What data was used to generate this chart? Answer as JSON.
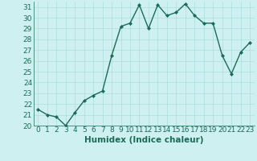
{
  "x": [
    0,
    1,
    2,
    3,
    4,
    5,
    6,
    7,
    8,
    9,
    10,
    11,
    12,
    13,
    14,
    15,
    16,
    17,
    18,
    19,
    20,
    21,
    22,
    23
  ],
  "y": [
    21.5,
    21.0,
    20.8,
    20.0,
    21.2,
    22.3,
    22.8,
    23.2,
    26.5,
    29.2,
    29.5,
    31.2,
    29.0,
    31.2,
    30.2,
    30.5,
    31.3,
    30.2,
    29.5,
    29.5,
    26.5,
    24.8,
    26.8,
    27.7
  ],
  "line_color": "#1a6b5a",
  "marker": "D",
  "markersize": 2.0,
  "linewidth": 1.0,
  "xlabel": "Humidex (Indice chaleur)",
  "xlim": [
    -0.5,
    23.5
  ],
  "ylim": [
    20,
    31.5
  ],
  "yticks": [
    20,
    21,
    22,
    23,
    24,
    25,
    26,
    27,
    28,
    29,
    30,
    31
  ],
  "xticks": [
    0,
    1,
    2,
    3,
    4,
    5,
    6,
    7,
    8,
    9,
    10,
    11,
    12,
    13,
    14,
    15,
    16,
    17,
    18,
    19,
    20,
    21,
    22,
    23
  ],
  "bg_color": "#cff0f0",
  "grid_color": "#aadddd",
  "xlabel_fontsize": 7.5,
  "tick_fontsize": 6.5,
  "xlabel_fontweight": "bold"
}
